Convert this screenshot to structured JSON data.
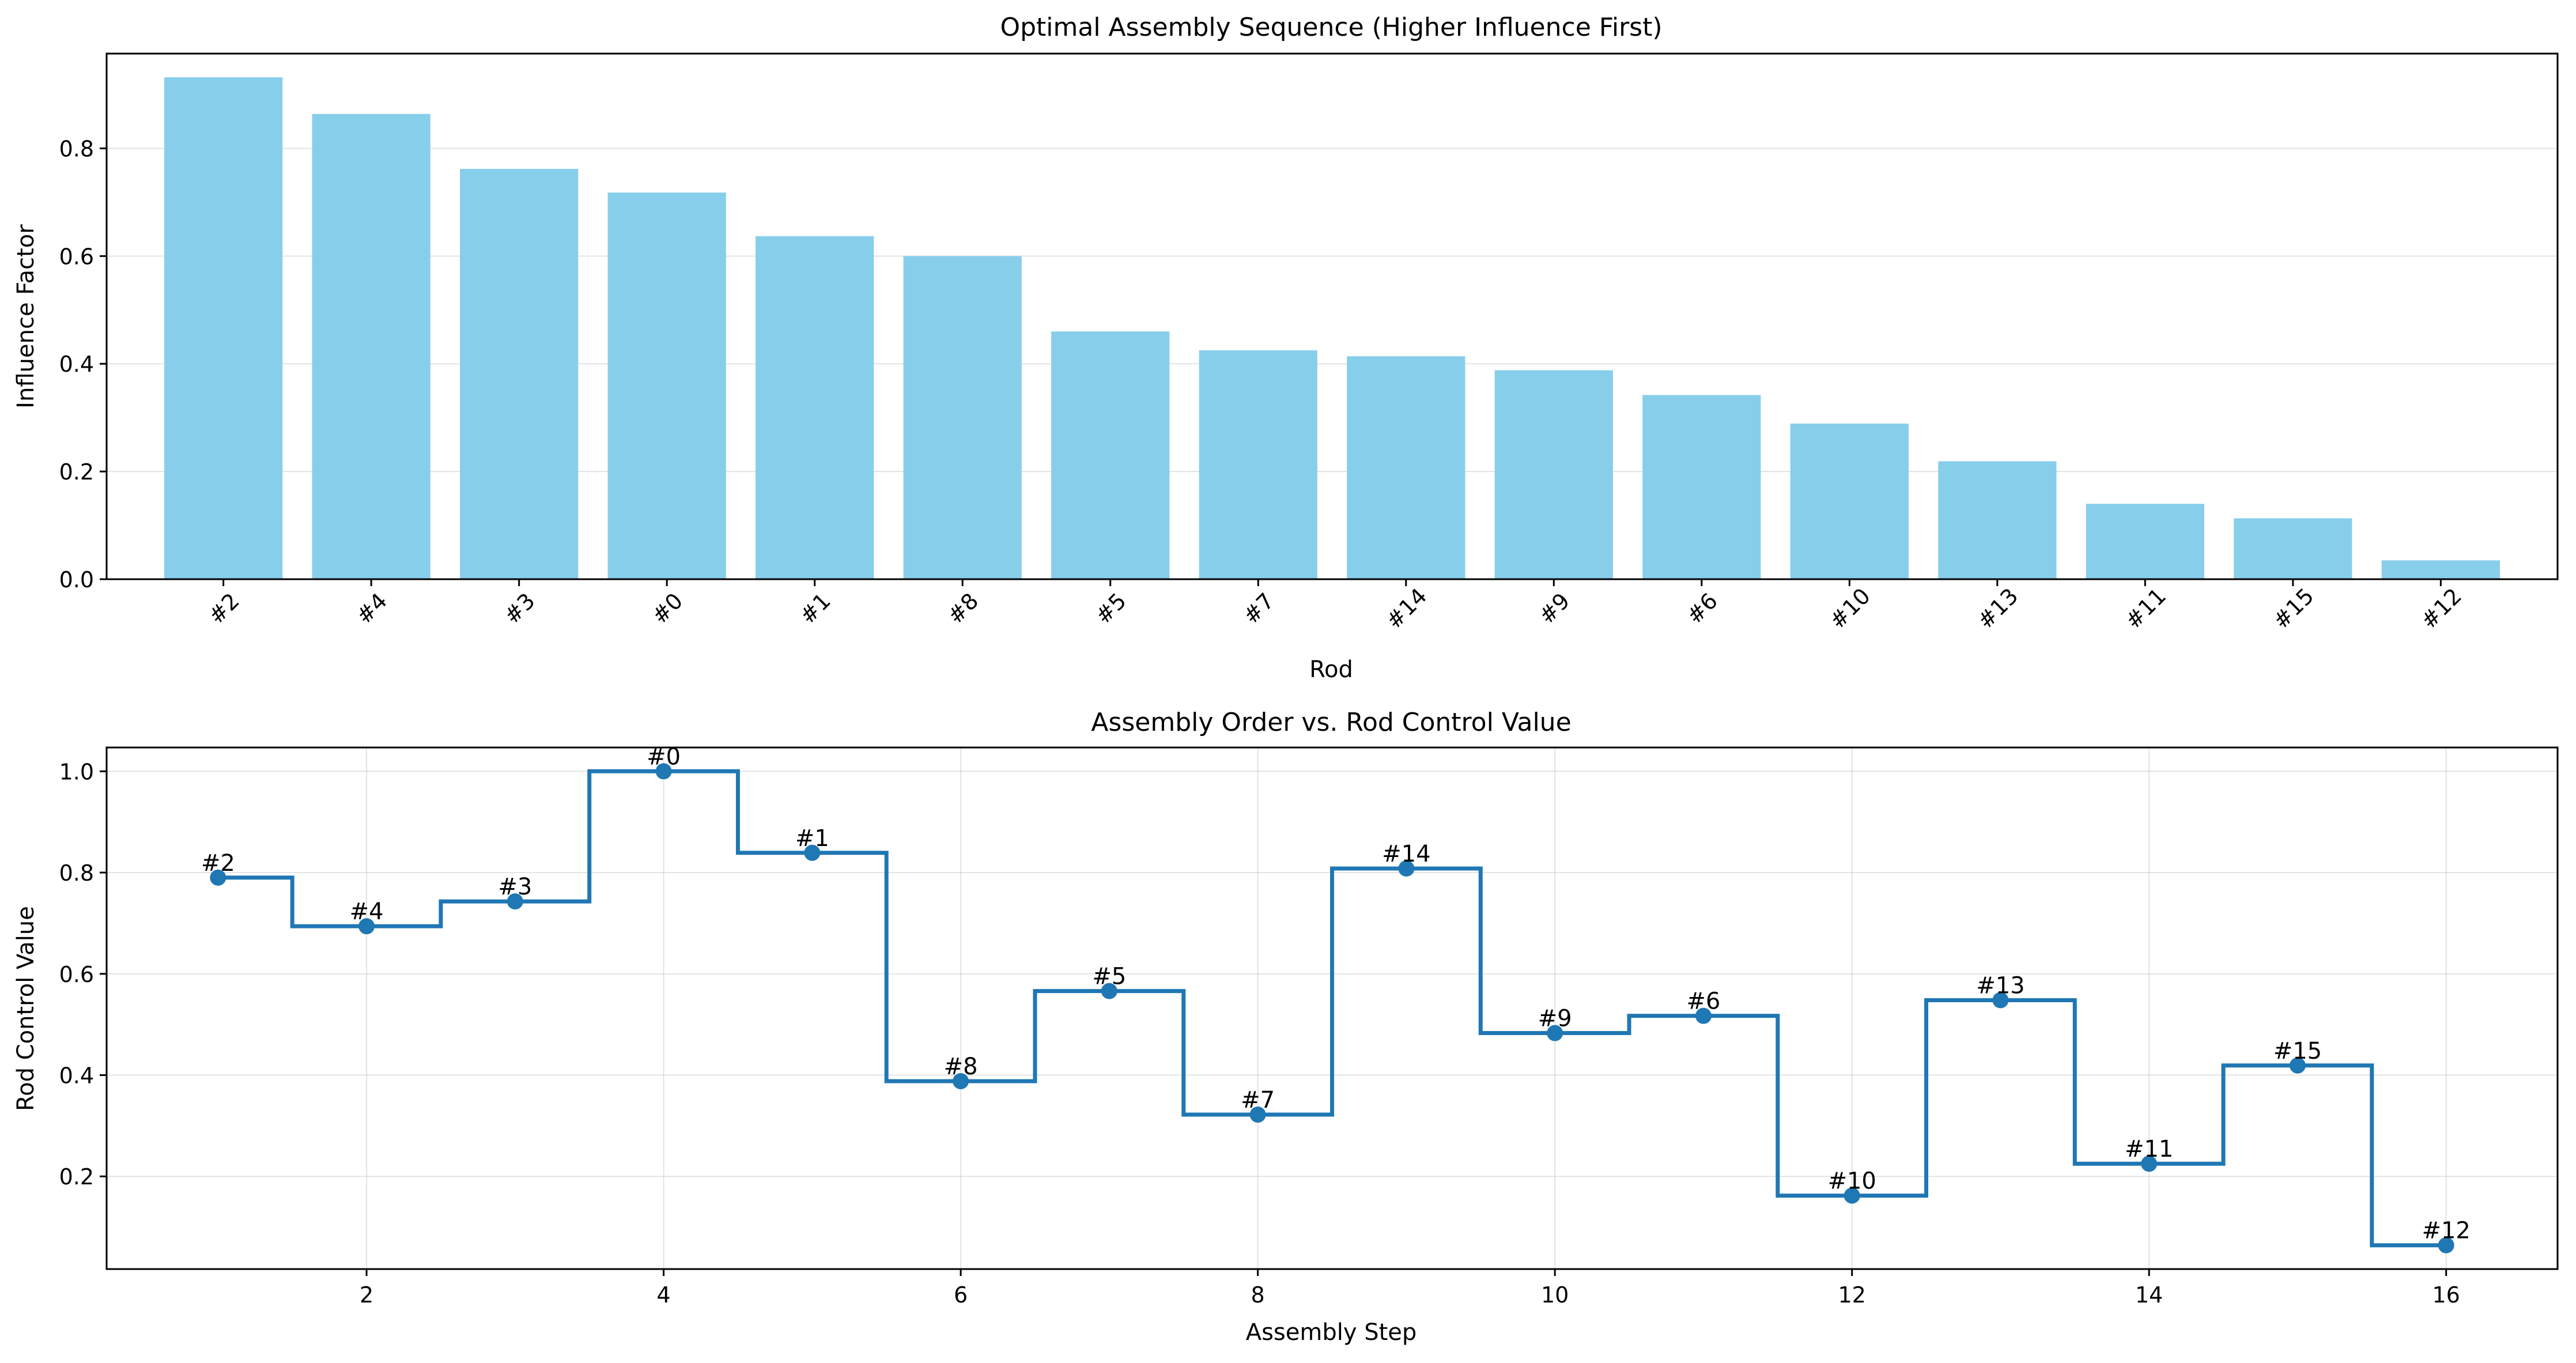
{
  "chart_data": [
    {
      "type": "bar",
      "title": "Optimal Assembly Sequence (Higher Influence First)",
      "xlabel": "Rod",
      "ylabel": "Influence Factor",
      "categories": [
        "#2",
        "#4",
        "#3",
        "#0",
        "#1",
        "#8",
        "#5",
        "#7",
        "#14",
        "#9",
        "#6",
        "#10",
        "#13",
        "#11",
        "#15",
        "#12"
      ],
      "values": [
        0.932,
        0.864,
        0.762,
        0.718,
        0.637,
        0.6,
        0.46,
        0.425,
        0.414,
        0.388,
        0.342,
        0.289,
        0.219,
        0.14,
        0.113,
        0.035
      ],
      "ylim": [
        0,
        0.976
      ],
      "yticks": [
        0.0,
        0.2,
        0.4,
        0.6,
        0.8
      ],
      "ytick_labels": [
        "0.0",
        "0.2",
        "0.4",
        "0.6",
        "0.8"
      ],
      "bar_color": "#87ceeb",
      "grid": "y"
    },
    {
      "type": "line",
      "style": "step-mid with markers",
      "title": "Assembly Order vs. Rod Control Value",
      "xlabel": "Assembly Step",
      "ylabel": "Rod Control Value",
      "x": [
        1,
        2,
        3,
        4,
        5,
        6,
        7,
        8,
        9,
        10,
        11,
        12,
        13,
        14,
        15,
        16
      ],
      "y": [
        0.79,
        0.694,
        0.743,
        1.0,
        0.839,
        0.388,
        0.566,
        0.322,
        0.808,
        0.483,
        0.517,
        0.162,
        0.548,
        0.225,
        0.419,
        0.064
      ],
      "point_labels": [
        "#2",
        "#4",
        "#3",
        "#0",
        "#1",
        "#8",
        "#5",
        "#7",
        "#14",
        "#9",
        "#6",
        "#10",
        "#13",
        "#11",
        "#15",
        "#12"
      ],
      "xlim": [
        0.25,
        16.75
      ],
      "ylim": [
        0.017,
        1.047
      ],
      "xticks": [
        2,
        4,
        6,
        8,
        10,
        12,
        14,
        16
      ],
      "xtick_labels": [
        "2",
        "4",
        "6",
        "8",
        "10",
        "12",
        "14",
        "16"
      ],
      "yticks": [
        0.2,
        0.4,
        0.6,
        0.8,
        1.0
      ],
      "ytick_labels": [
        "0.2",
        "0.4",
        "0.6",
        "0.8",
        "1.0"
      ],
      "line_color": "#1f77b4",
      "grid": "both"
    }
  ]
}
